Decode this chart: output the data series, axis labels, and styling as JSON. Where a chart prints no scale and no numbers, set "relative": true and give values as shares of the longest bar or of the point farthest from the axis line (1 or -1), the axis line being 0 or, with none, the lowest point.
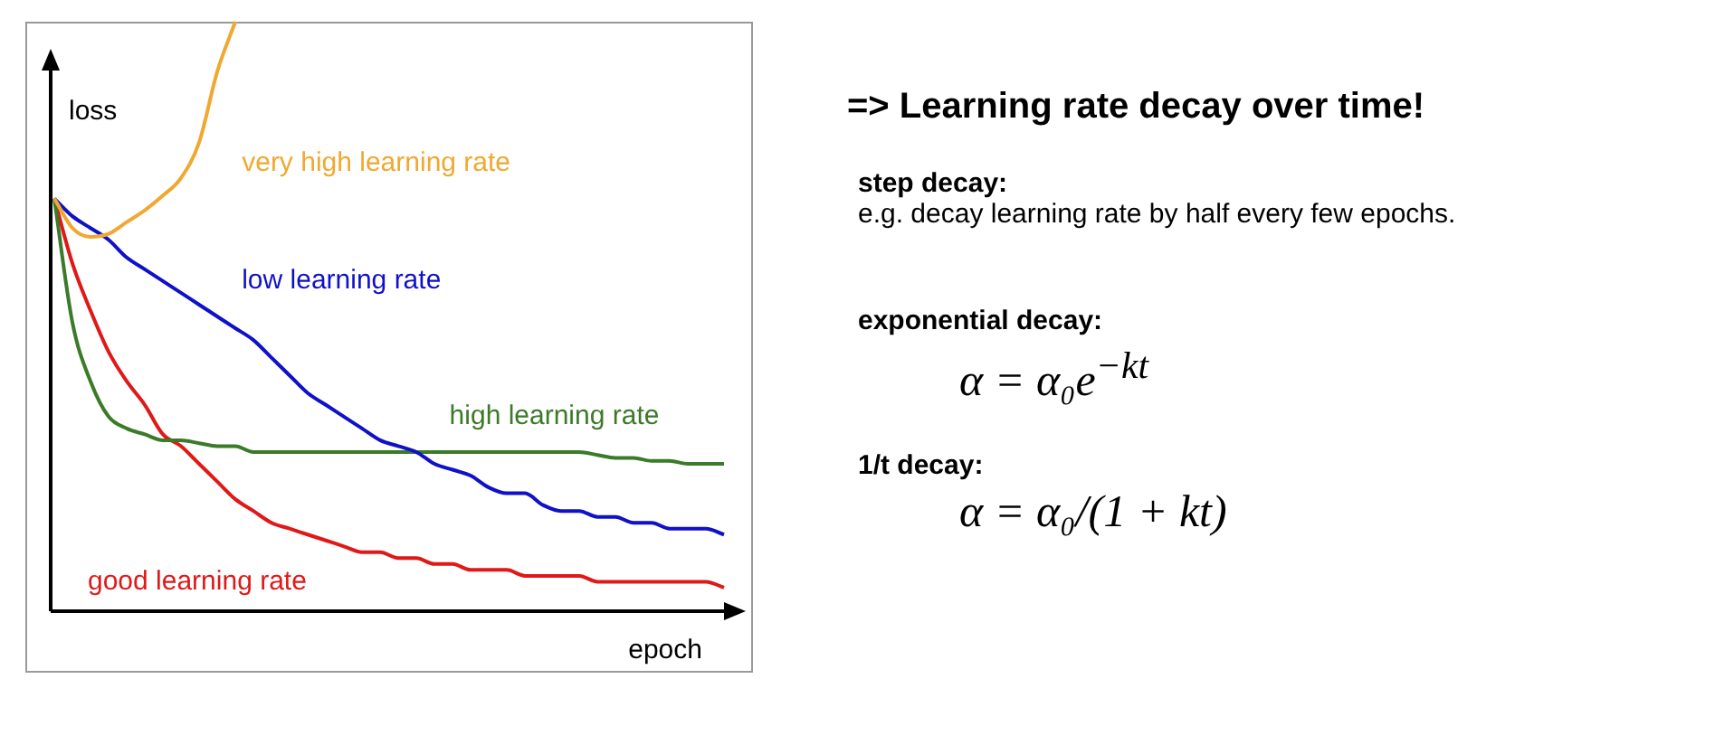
{
  "chart_data": {
    "type": "line",
    "relative": true,
    "title": "=> Learning rate decay over time!",
    "xlabel": "epoch",
    "ylabel": "loss",
    "categories": [
      null,
      null,
      null,
      null,
      null,
      null,
      null,
      null,
      null,
      null,
      null,
      null,
      null,
      null,
      null,
      null,
      null,
      null,
      null,
      null,
      null,
      null,
      null,
      null,
      null,
      null,
      null,
      null,
      null,
      null,
      null,
      null,
      null,
      null,
      null,
      null,
      null,
      null
    ],
    "series": [
      {
        "name": "very high learning rate",
        "color": "#f0a830",
        "values": [
          0.7,
          0.65,
          0.635,
          0.64,
          0.66,
          0.68,
          0.705,
          0.735,
          0.795,
          0.915,
          1,
          null,
          null,
          null,
          null,
          null,
          null,
          null,
          null,
          null,
          null,
          null,
          null,
          null,
          null,
          null,
          null,
          null,
          null,
          null,
          null,
          null,
          null,
          null,
          null,
          null,
          null,
          null
        ]
      },
      {
        "name": "low learning rate",
        "color": "#1010c8",
        "values": [
          0.7,
          0.67,
          0.65,
          0.63,
          0.6,
          0.58,
          0.56,
          0.54,
          0.52,
          0.5,
          0.48,
          0.46,
          0.43,
          0.4,
          0.37,
          0.35,
          0.33,
          0.31,
          0.29,
          0.28,
          0.27,
          0.25,
          0.24,
          0.23,
          0.21,
          0.2,
          0.2,
          0.18,
          0.17,
          0.17,
          0.16,
          0.16,
          0.15,
          0.15,
          0.14,
          0.14,
          0.14,
          0.13
        ]
      },
      {
        "name": "high learning rate",
        "color": "#3a7a28",
        "values": [
          0.7,
          0.49,
          0.39,
          0.33,
          0.31,
          0.3,
          0.29,
          0.29,
          0.285,
          0.28,
          0.28,
          0.27,
          0.27,
          0.27,
          0.27,
          0.27,
          0.27,
          0.27,
          0.27,
          0.27,
          0.27,
          0.27,
          0.27,
          0.27,
          0.27,
          0.27,
          0.27,
          0.27,
          0.27,
          0.27,
          0.265,
          0.26,
          0.26,
          0.255,
          0.255,
          0.25,
          0.25,
          0.25
        ]
      },
      {
        "name": "good learning rate",
        "color": "#e01818",
        "values": [
          0.7,
          0.59,
          0.51,
          0.44,
          0.39,
          0.35,
          0.3,
          0.28,
          0.25,
          0.22,
          0.19,
          0.17,
          0.15,
          0.14,
          0.13,
          0.12,
          0.11,
          0.1,
          0.1,
          0.09,
          0.09,
          0.08,
          0.08,
          0.07,
          0.07,
          0.07,
          0.06,
          0.06,
          0.06,
          0.06,
          0.05,
          0.05,
          0.05,
          0.05,
          0.05,
          0.05,
          0.05,
          0.04
        ]
      }
    ],
    "legend": false,
    "annotations": [
      "step decay:",
      "e.g. decay learning rate by half every few epochs.",
      "exponential decay:",
      "α = α₀e$^{−kt}$",
      "1/t decay:",
      "α = α₀/(1 + kt)"
    ]
  }
}
